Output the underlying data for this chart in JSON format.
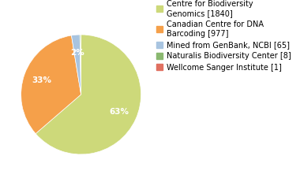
{
  "labels": [
    "Centre for Biodiversity\nGenomics [1840]",
    "Canadian Centre for DNA\nBarcoding [977]",
    "Mined from GenBank, NCBI [65]",
    "Naturalis Biodiversity Center [8]",
    "Wellcome Sanger Institute [1]"
  ],
  "values": [
    1840,
    977,
    65,
    8,
    1
  ],
  "colors": [
    "#cdd97a",
    "#f5a04a",
    "#a8c4e0",
    "#8ab870",
    "#e07060"
  ],
  "pct_labels": [
    "63%",
    "33%",
    "2%",
    "",
    ""
  ],
  "legend_labels": [
    "Centre for Biodiversity\nGenomics [1840]",
    "Canadian Centre for DNA\nBarcoding [977]",
    "Mined from GenBank, NCBI [65]",
    "Naturalis Biodiversity Center [8]",
    "Wellcome Sanger Institute [1]"
  ],
  "background_color": "#ffffff",
  "text_color": "#ffffff",
  "fontsize_pct": 7.5,
  "fontsize_legend": 7.0
}
